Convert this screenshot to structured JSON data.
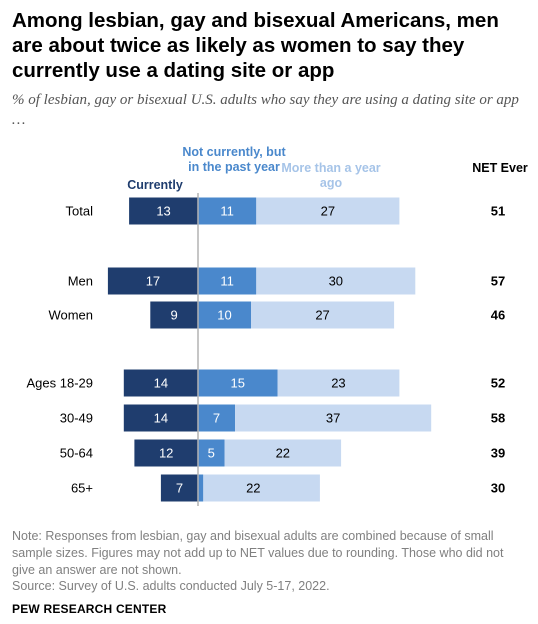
{
  "title": "Among lesbian, gay and bisexual Americans, men are about twice as likely as women to say they currently use a dating site or app",
  "subtitle": "% of lesbian, gay or bisexual U.S. adults who say they are using a dating site or app …",
  "headers": {
    "currently": "Currently",
    "not_currently": "Not currently, but in the past year",
    "more_than_year": "More than a year ago",
    "net": "NET Ever"
  },
  "colors": {
    "currently": "#1f3d6e",
    "not_currently": "#4a88cc",
    "more_than_year": "#c7d9f1",
    "divider": "#b3b3b3"
  },
  "chart_data": {
    "type": "bar",
    "orientation": "horizontal-diverging-stacked",
    "categories": [
      "Total",
      "Men",
      "Women",
      "Ages 18-29",
      "30-49",
      "50-64",
      "65+"
    ],
    "series": [
      {
        "name": "Currently",
        "values": [
          13,
          17,
          9,
          14,
          14,
          12,
          7
        ]
      },
      {
        "name": "Not currently, but in the past year",
        "values": [
          11,
          11,
          10,
          15,
          7,
          5,
          1
        ]
      },
      {
        "name": "More than a year ago",
        "values": [
          27,
          30,
          27,
          23,
          37,
          22,
          22
        ]
      }
    ],
    "net_label": "NET Ever",
    "net_values": [
      51,
      57,
      46,
      52,
      58,
      39,
      30
    ]
  },
  "note": "Note: Responses from lesbian, gay and bisexual adults are combined because of small sample sizes. Figures may not add up to NET values due to rounding. Those who did not give an answer are not shown.",
  "source": "Source: Survey of U.S. adults conducted July 5-17, 2022.",
  "brand": "PEW RESEARCH CENTER"
}
